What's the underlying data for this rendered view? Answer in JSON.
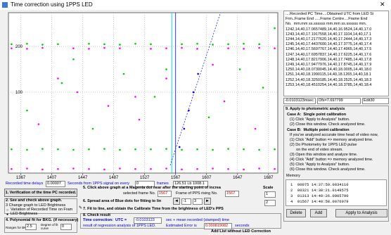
{
  "window": {
    "title": "Time correction using 1PPS LED"
  },
  "chart_data": {
    "type": "scatter",
    "xlim": [
      1351,
      1699
    ],
    "ylim": [
      -77,
      274
    ],
    "xticks": [
      1367,
      1407,
      1447,
      1487,
      1527,
      1567,
      1607,
      1647,
      1687
    ],
    "yticks": [
      100,
      200
    ],
    "grid": true,
    "series": [
      {
        "color": "#00cc00",
        "x": [
          1355,
          1375,
          1395,
          1415,
          1435,
          1455,
          1475,
          1495,
          1515,
          1535,
          1555,
          1575,
          1595,
          1615,
          1635,
          1655,
          1675,
          1695
        ],
        "values": [
          205,
          206,
          204,
          205,
          172,
          206,
          205,
          204,
          206,
          205,
          150,
          205,
          206,
          204,
          205,
          206,
          205,
          240
        ]
      },
      {
        "color": "#ff00ff",
        "x": [
          1355,
          1375,
          1395,
          1415,
          1435,
          1455,
          1475,
          1495,
          1515,
          1535,
          1555,
          1575,
          1595,
          1615,
          1635,
          1655,
          1675,
          1695
        ],
        "values": [
          196,
          195,
          197,
          130,
          196,
          195,
          197,
          196,
          90,
          195,
          196,
          197,
          195,
          160,
          196,
          195,
          197,
          196
        ]
      },
      {
        "color": "#00cc00",
        "x": [
          1355,
          1375,
          1395,
          1415,
          1435,
          1455,
          1475,
          1495,
          1515,
          1535,
          1555,
          1575,
          1595,
          1615,
          1635,
          1655,
          1675,
          1695
        ],
        "values": [
          -25,
          -26,
          -24,
          -25,
          -26,
          -25,
          -24,
          -26,
          -25,
          -25,
          -24,
          -26,
          -25,
          -26,
          -24,
          -25,
          -26,
          -25
        ]
      },
      {
        "color": "#ff00ff",
        "x": [
          1355,
          1375,
          1395,
          1415,
          1435,
          1455,
          1475,
          1495,
          1515,
          1535,
          1555,
          1575,
          1595,
          1615,
          1635,
          1655,
          1675,
          1695
        ],
        "values": [
          -68,
          -67,
          -69,
          -68,
          -67,
          -68,
          -69,
          -67,
          -68,
          -68,
          -67,
          -69,
          -68,
          -67,
          -68,
          -69,
          -67,
          -68
        ]
      },
      {
        "color": "#00cc00",
        "x": [
          1375,
          1420,
          1460,
          1500,
          1540,
          1610,
          1650,
          1680
        ],
        "values": [
          60,
          120,
          20,
          140,
          90,
          45,
          150,
          110
        ]
      },
      {
        "color": "#ff00ff",
        "x": [
          1390,
          1440,
          1480,
          1520,
          1555,
          1630,
          1670
        ],
        "values": [
          30,
          100,
          70,
          40,
          130,
          80,
          20
        ]
      },
      {
        "color": "#0000ff",
        "x": [
          1572,
          1578,
          1584,
          1590,
          1596
        ],
        "values": [
          -20,
          20,
          60,
          100,
          140
        ]
      }
    ],
    "cursor_x": 1562,
    "marker_x": 1567,
    "fit_line": {
      "x": [
        1560,
        1625
      ],
      "values": [
        -60,
        274
      ]
    }
  },
  "list": {
    "header": [
      "....Recorded PC Time....Obtained UTC from LED Si",
      "Frm..Frame End .....Frame Centre....Frame End",
      "No.  mm.mm ss.ssssss mm.mm ss.ssssss mm."
    ],
    "rows": [
      "1242,14,40,17.0657489,14,40,16.9524,14,40,17.0",
      "1243,14,40,17.1917558,14,40,17.1104,14,40,17.1",
      "1244,14,40,17.2177620,14,40,17.2444,14,40,17.3",
      "1245,14,40,17.4437600,14,40,17.3775,14,40,17.4",
      "1246,14,40,17.5697767,14,40,17.4965,14,40,17.5",
      "1247,14,40,17.6957837,14,40,17.6225,14,40,17.6",
      "1248,14,40,17.8217906,14,40,17.7485,14,40,17.8",
      "1249,14,40,17.9477976,14,40,17.8745,14,40,17.9",
      "1250,14,40,18.0730045,14,40,18.0005,14,40,18.0",
      "1251,14,40,18.1990115,14,40,18.1265,14,40,18.1",
      "1252,14,40,18.3250185,14,40,18.2525,14,40,18.3",
      "1253,14,40,18.4510254,14,40,18.3785,14,40,18.4"
    ]
  },
  "result_box": {
    "value": "-0.0103123msec",
    "offset": "Ofs=7.697799",
    "edit": "Edit30"
  },
  "apply": {
    "title": "9. Apply to photometric analysis",
    "case_a": "Case A:  Single point calibration",
    "case_a_steps": [
      "(1) Click \"Apply to Analysis\" button.",
      "(2) Close this window. Check analyzed time."
    ],
    "case_b": "Case B:  Multiple point calibration",
    "case_b_steps": [
      "If you've analyzed accurate time head of video now,",
      "(1) Click \"Add\" button => memory analyzed time.",
      "(2) Do Photometry for 1PPS LED pulse",
      "      on the end of video stream.",
      "(3) Open this window and analyze time.",
      "(4) Click \"Add\" button => memory analyzed time.",
      "(5) Click \"Apply to Analysis\" button.",
      "(6) Close this window. Check analyzed time."
    ],
    "memory_label": "Memory",
    "memory": [
      "1  00075 14:37:50.0034110",
      "2  00321 14:38:21.0149575",
      "3  01313 14:40:26.0005790",
      "4  01567 14:40:58.0076979"
    ],
    "buttons": [
      "Delete",
      "Add",
      "Apply to Analysis"
    ]
  },
  "delay": {
    "label": "Recorded time delays",
    "value": "0.00007",
    "text": "Seconds from 1PPS signal on every",
    "frames": "0",
    "frames_label": "frames",
    "info": "126.51 Lb 1008.1"
  },
  "steps": {
    "s1": "1. Verification of the time PC recorded.",
    "s2": "2. See and check above graph.",
    "s3": "3 Change graph to LED Brightness",
    "s3_options": [
      "Variation of Recorded Time on Fram",
      "LED Brightness"
    ],
    "s4": "4. Polynomial fit for BKG. (if necessary)",
    "s4_range": "Ranges for BKG",
    "s4_range_value": "2.5",
    "s4_degree": "Degree of fit curve",
    "s4_degree_value": "0",
    "s5": "5. Click above graph at a Magenta dot near after the starting point of increa",
    "scale": "Scale",
    "scale_values": [
      "1",
      "2"
    ],
    "s5_frame": "selected frame No.",
    "s5_frame_value": "1567",
    "s5_pps": "Frame of PPS rising No.",
    "s5_pps_value": "1567",
    "s6": "6. Spread area of Blue dots for fitting to lin",
    "s6_values": [
      "-1",
      "3"
    ],
    "s7": "7. Fit to line, and obtain the Calibrate Time from the brightness of LED's PPS",
    "s8": "8. Check result",
    "s8_time": "Time correction:  UTC =",
    "s8_value": "-0.0103123",
    "s8_rest": "sec + mean recorded (stamped) time",
    "s8_result": "result of regression analysis of 1PPS LED.",
    "s8_err": "Estimated Error is",
    "s8_err_value": "0.000819082",
    "s8_sec": "seconds",
    "add_list": "Add List without LED Correction"
  }
}
